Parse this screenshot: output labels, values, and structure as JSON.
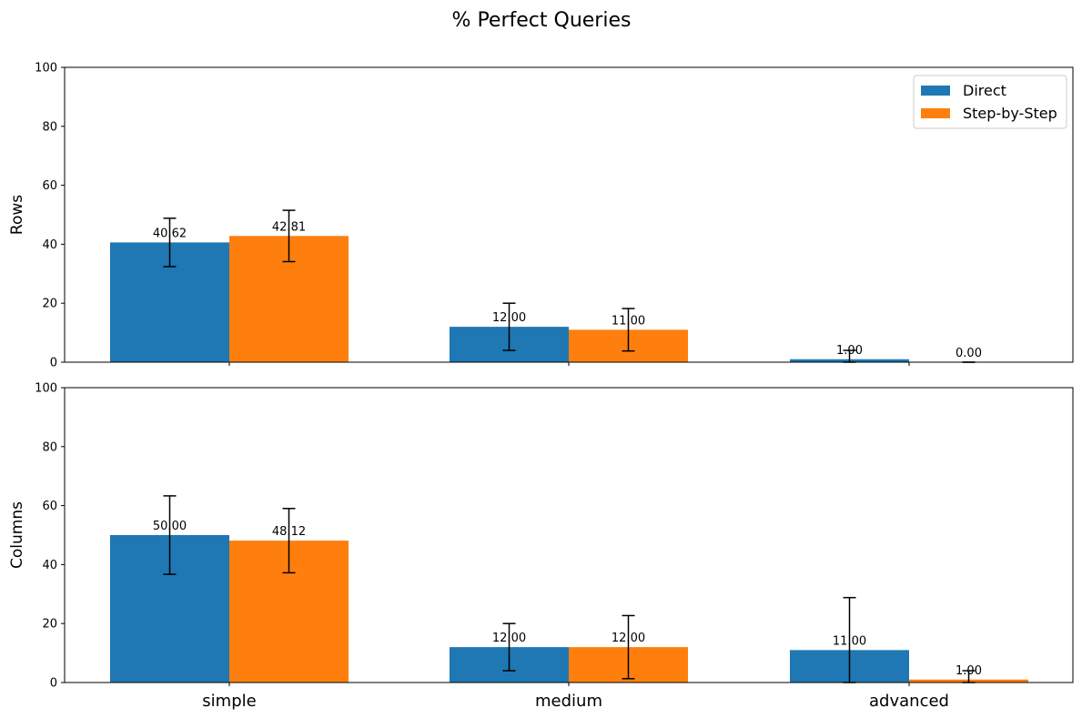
{
  "chart_title": "% Perfect Queries",
  "colors": {
    "direct": "#1f77b4",
    "step": "#ff7f0e",
    "errorbar": "#000000"
  },
  "chart_data": [
    {
      "type": "bar",
      "ylabel": "Rows",
      "ylim": [
        0,
        100
      ],
      "yticks": [
        0,
        20,
        40,
        60,
        80,
        100
      ],
      "categories": [
        "simple",
        "medium",
        "advanced"
      ],
      "series": [
        {
          "name": "Direct",
          "values": [
            40.62,
            12.0,
            1.0
          ],
          "errors": [
            8.2,
            8.0,
            3.0
          ],
          "labels": [
            "40.62",
            "12.00",
            "1.00"
          ]
        },
        {
          "name": "Step-by-Step",
          "values": [
            42.81,
            11.0,
            0.0
          ],
          "errors": [
            8.7,
            7.2,
            0.0
          ],
          "labels": [
            "42.81",
            "11.00",
            "0.00"
          ]
        }
      ],
      "legend": "top-right",
      "show_xticklabels": false
    },
    {
      "type": "bar",
      "ylabel": "Columns",
      "ylim": [
        0,
        100
      ],
      "yticks": [
        0,
        20,
        40,
        60,
        80,
        100
      ],
      "categories": [
        "simple",
        "medium",
        "advanced"
      ],
      "series": [
        {
          "name": "Direct",
          "values": [
            50.0,
            12.0,
            11.0
          ],
          "errors": [
            13.3,
            8.0,
            17.8
          ],
          "labels": [
            "50.00",
            "12.00",
            "11.00"
          ]
        },
        {
          "name": "Step-by-Step",
          "values": [
            48.12,
            12.0,
            1.0
          ],
          "errors": [
            10.9,
            10.7,
            3.0
          ],
          "labels": [
            "48.12",
            "12.00",
            "1.00"
          ]
        }
      ],
      "show_xticklabels": true
    }
  ]
}
